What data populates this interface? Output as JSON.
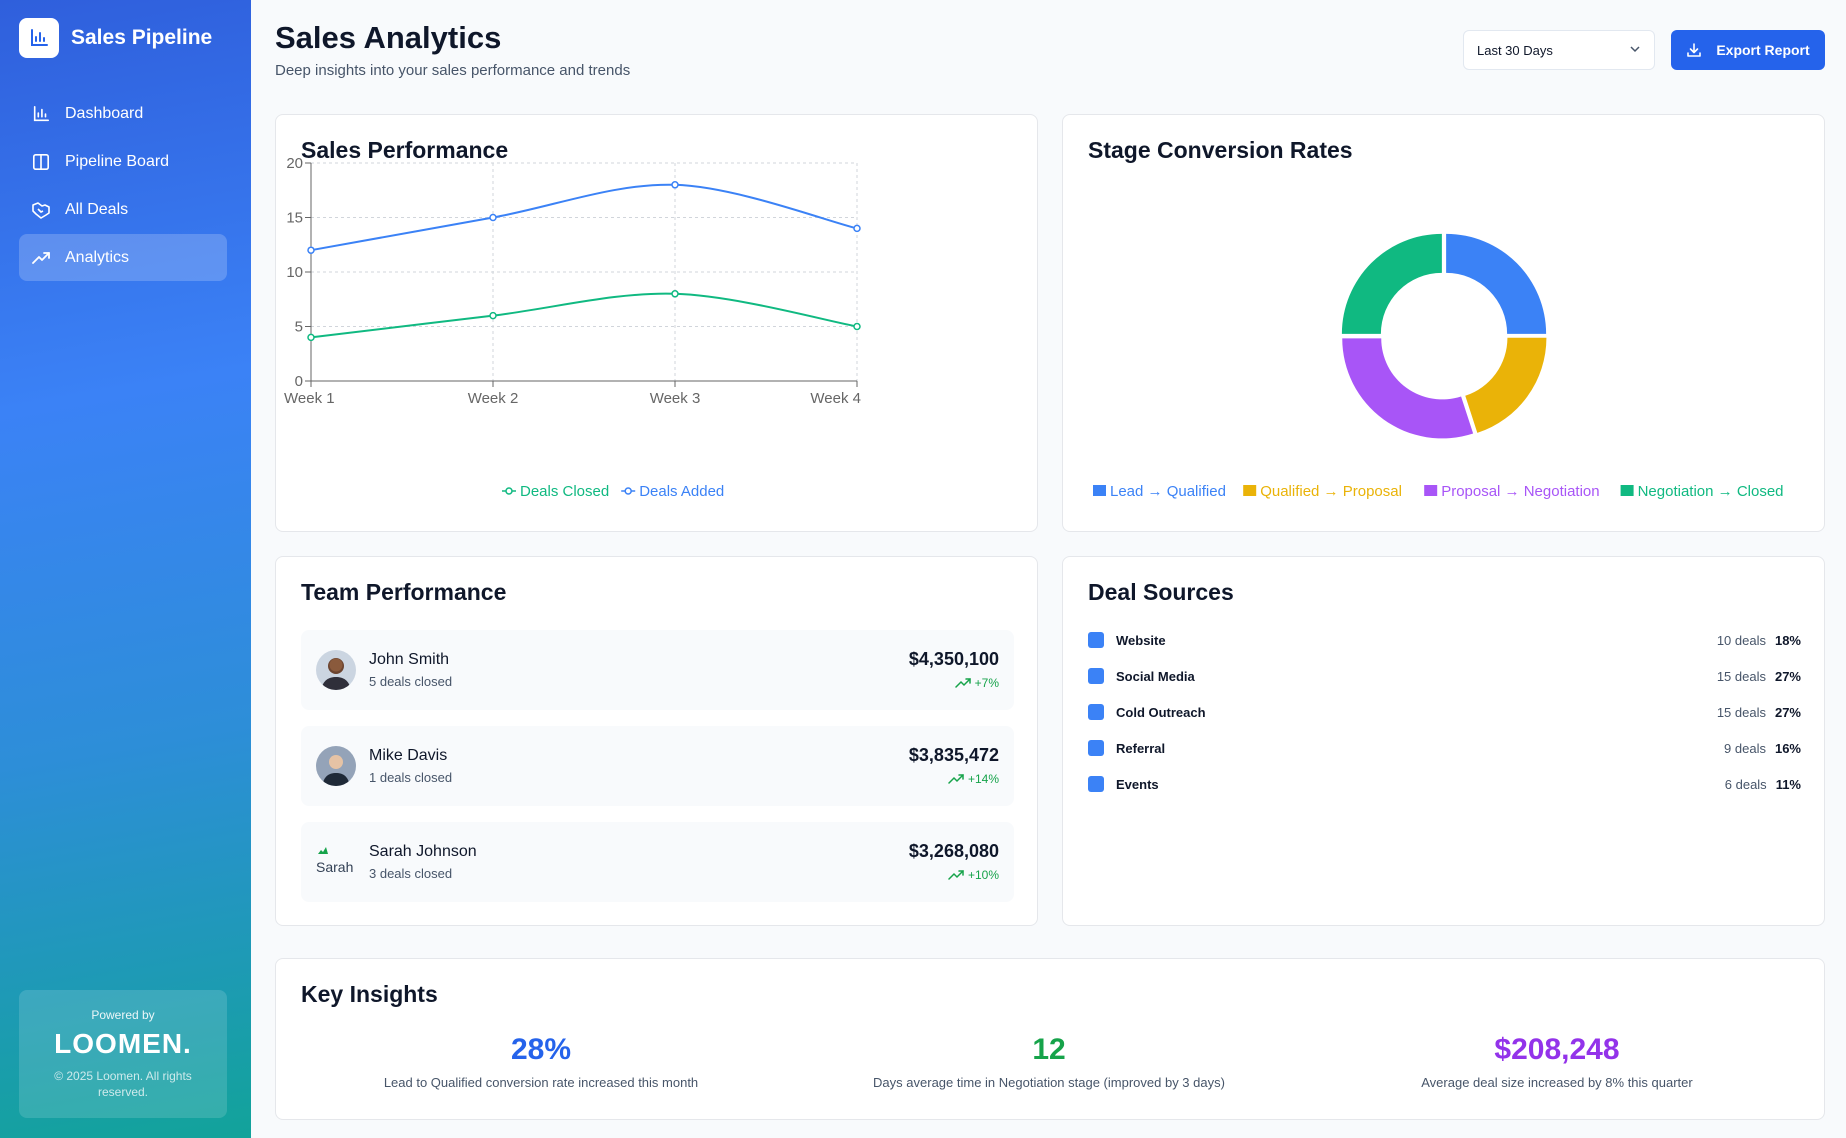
{
  "app": {
    "title": "Sales Pipeline",
    "logo_icon": "bar-chart-icon"
  },
  "sidebar": {
    "items": [
      {
        "label": "Dashboard",
        "icon": "bar-chart-icon"
      },
      {
        "label": "Pipeline Board",
        "icon": "columns-icon"
      },
      {
        "label": "All Deals",
        "icon": "handshake-icon"
      },
      {
        "label": "Analytics",
        "icon": "trending-up-icon",
        "active": true
      }
    ],
    "powered_by": "Powered by",
    "powered_logo": "LOOMEN.",
    "copyright": "© 2025 Loomen. All rights reserved."
  },
  "header": {
    "title": "Sales Analytics",
    "subtitle": "Deep insights into your sales performance and trends",
    "date_range": "Last 30 Days",
    "export_label": "Export Report"
  },
  "sales_performance": {
    "title": "Sales Performance"
  },
  "stage_conversion": {
    "title": "Stage Conversion Rates"
  },
  "chart_data": [
    {
      "type": "line",
      "title": "Sales Performance",
      "x": [
        "Week 1",
        "Week 2",
        "Week 3",
        "Week 4"
      ],
      "series": [
        {
          "name": "Deals Closed",
          "values": [
            4,
            6,
            8,
            5
          ],
          "color": "#10b981"
        },
        {
          "name": "Deals Added",
          "values": [
            12,
            15,
            18,
            14
          ],
          "color": "#3b82f6"
        }
      ],
      "ylim": [
        0,
        20
      ],
      "yticks": [
        0,
        5,
        10,
        15,
        20
      ],
      "grid": true,
      "legend": "bottom"
    },
    {
      "type": "pie",
      "title": "Stage Conversion Rates",
      "donut": true,
      "slices": [
        {
          "name": "Lead → Qualified",
          "value": 25,
          "color": "#3b82f6"
        },
        {
          "name": "Qualified → Proposal",
          "value": 20,
          "color": "#eab308"
        },
        {
          "name": "Proposal → Negotiation",
          "value": 30,
          "color": "#a855f7"
        },
        {
          "name": "Negotiation → Closed",
          "value": 25,
          "color": "#10b981"
        }
      ],
      "legend": "bottom"
    }
  ],
  "team": {
    "title": "Team Performance",
    "members": [
      {
        "name": "John Smith",
        "deals": "5 deals closed",
        "amount": "$4,350,100",
        "change": "+7%"
      },
      {
        "name": "Mike Davis",
        "deals": "1 deals closed",
        "amount": "$3,835,472",
        "change": "+14%"
      },
      {
        "name": "Sarah Johnson",
        "deals": "3 deals closed",
        "amount": "$3,268,080",
        "change": "+10%",
        "avatar_alt": "Sarah"
      }
    ]
  },
  "sources": {
    "title": "Deal Sources",
    "items": [
      {
        "name": "Website",
        "deals": "10 deals",
        "pct": "18%"
      },
      {
        "name": "Social Media",
        "deals": "15 deals",
        "pct": "27%"
      },
      {
        "name": "Cold Outreach",
        "deals": "15 deals",
        "pct": "27%"
      },
      {
        "name": "Referral",
        "deals": "9 deals",
        "pct": "16%"
      },
      {
        "name": "Events",
        "deals": "6 deals",
        "pct": "11%"
      }
    ]
  },
  "insights": {
    "title": "Key Insights",
    "items": [
      {
        "value": "28%",
        "desc": "Lead to Qualified conversion rate increased this month",
        "color": "#2563eb"
      },
      {
        "value": "12",
        "desc": "Days average time in Negotiation stage (improved by 3 days)",
        "color": "#16a34a"
      },
      {
        "value": "$208,248",
        "desc": "Average deal size increased by 8% this quarter",
        "color": "#9333ea"
      }
    ]
  }
}
